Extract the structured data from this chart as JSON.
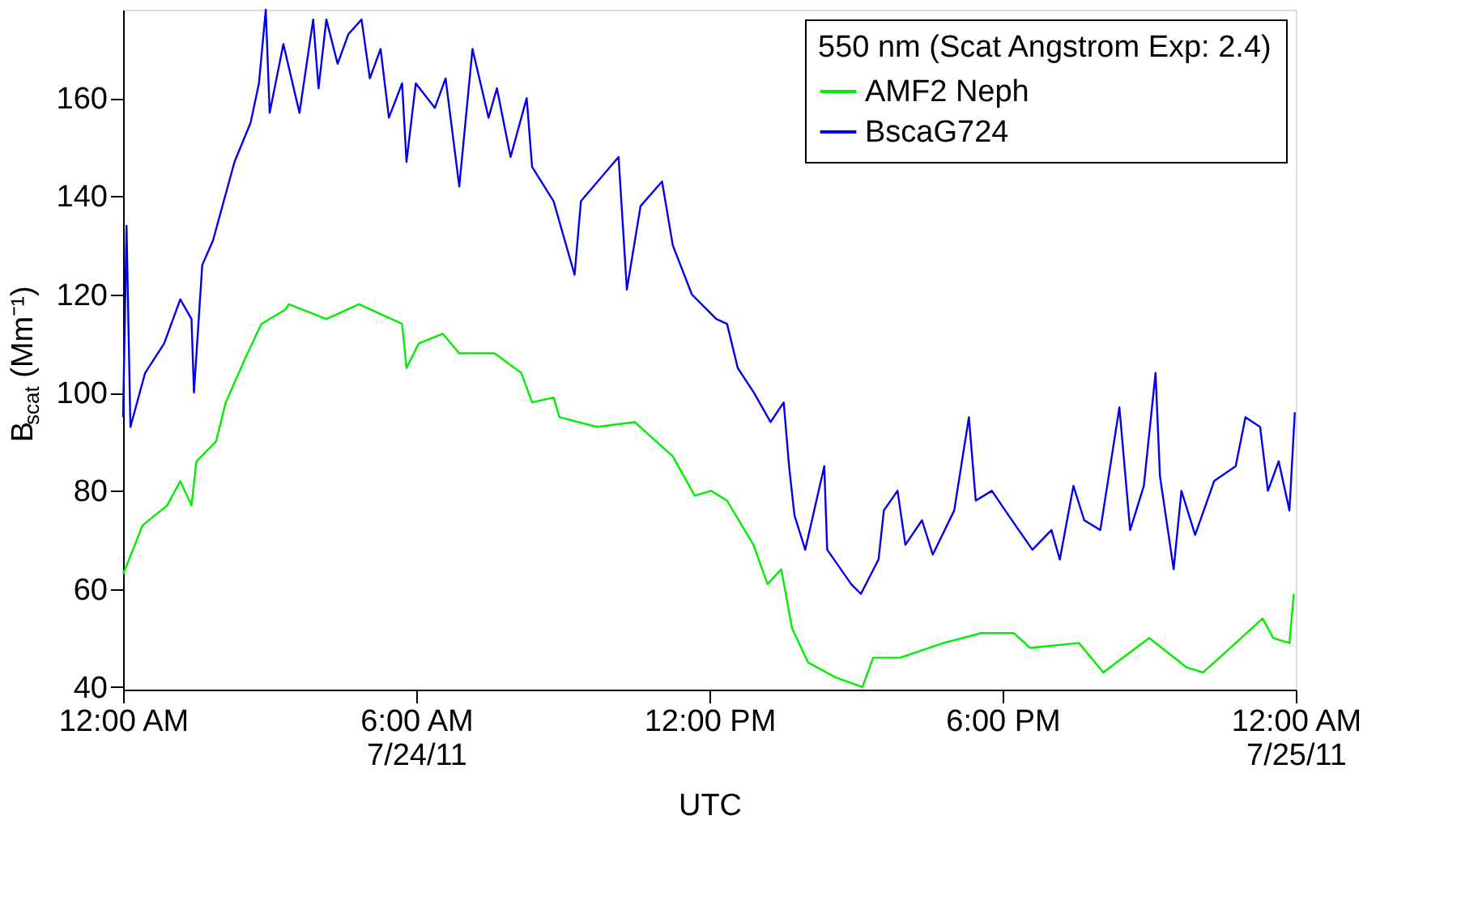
{
  "chart_data": {
    "type": "line",
    "xlabel": "UTC",
    "ylabel": "B$_{scat}$ (Mm⁻¹)",
    "legend_title": "550 nm (Scat Angstrom Exp: 2.4)",
    "xlim": [
      0,
      24
    ],
    "ylim": [
      39.5,
      178
    ],
    "xticks": [
      {
        "value": 0,
        "label": "12:00 AM"
      },
      {
        "value": 6,
        "label": "6:00 AM\n7/24/11"
      },
      {
        "value": 12,
        "label": "12:00 PM"
      },
      {
        "value": 18,
        "label": "6:00 PM"
      },
      {
        "value": 24,
        "label": "12:00 AM\n7/25/11"
      }
    ],
    "yticks": [
      40,
      60,
      80,
      100,
      120,
      140,
      160
    ],
    "grid": false,
    "legend": "top right",
    "series": [
      {
        "name": "AMF2 Neph",
        "color": "#00ee00",
        "x": [
          0.0,
          0.4,
          0.9,
          1.17,
          1.4,
          1.5,
          1.9,
          2.1,
          2.5,
          2.83,
          3.33,
          3.39,
          4.16,
          4.83,
          5.49,
          5.71,
          5.8,
          6.05,
          6.54,
          6.88,
          7.6,
          8.15,
          8.37,
          8.81,
          8.93,
          9.7,
          10.47,
          11.25,
          11.7,
          12.03,
          12.36,
          12.9,
          13.19,
          13.47,
          13.69,
          14.02,
          14.58,
          15.13,
          15.35,
          15.9,
          16.79,
          17.56,
          18.23,
          18.56,
          19.56,
          20.06,
          21.0,
          21.77,
          22.1,
          22.77,
          23.32,
          23.54,
          23.87,
          23.96
        ],
        "values": [
          63,
          73,
          77,
          82,
          77,
          86,
          90,
          98,
          107,
          114,
          117,
          118,
          115,
          118,
          115,
          114,
          105,
          110,
          112,
          108,
          108,
          104,
          98,
          99,
          95,
          93,
          94,
          87,
          79,
          80,
          78,
          69,
          61,
          64,
          52,
          45,
          42,
          40,
          46,
          46,
          49,
          51,
          51,
          48,
          49,
          43,
          50,
          44,
          43,
          49,
          54,
          50,
          49,
          59
        ]
      },
      {
        "name": "BscaG724",
        "color": "#0000ee",
        "x": [
          0.0,
          0.07,
          0.15,
          0.45,
          0.84,
          1.17,
          1.4,
          1.45,
          1.62,
          1.84,
          2.06,
          2.28,
          2.61,
          2.78,
          2.92,
          3.0,
          3.28,
          3.61,
          3.89,
          4.0,
          4.16,
          4.39,
          4.61,
          4.88,
          5.05,
          5.27,
          5.44,
          5.71,
          5.8,
          5.99,
          6.38,
          6.6,
          6.88,
          7.15,
          7.48,
          7.65,
          7.93,
          8.26,
          8.37,
          8.81,
          9.24,
          9.37,
          10.14,
          10.31,
          10.59,
          11.03,
          11.25,
          11.64,
          12.14,
          12.36,
          12.58,
          12.91,
          13.25,
          13.52,
          13.63,
          13.74,
          13.96,
          14.35,
          14.41,
          14.9,
          15.1,
          15.46,
          15.57,
          15.85,
          16.01,
          16.35,
          16.57,
          17.01,
          17.31,
          17.45,
          17.78,
          18.12,
          18.61,
          19.0,
          19.17,
          19.45,
          19.67,
          20.0,
          20.39,
          20.61,
          20.89,
          21.13,
          21.22,
          21.5,
          21.66,
          21.94,
          22.33,
          22.77,
          22.97,
          23.27,
          23.43,
          23.65,
          23.87,
          23.98
        ],
        "values": [
          95,
          134,
          93,
          104,
          110,
          119,
          115,
          100,
          126,
          131,
          139,
          147,
          155,
          163,
          178,
          157,
          171,
          157,
          176,
          162,
          176,
          167,
          173,
          176,
          164,
          170,
          156,
          163,
          147,
          163,
          158,
          164,
          142,
          170,
          156,
          162,
          148,
          160,
          146,
          139,
          124,
          139,
          148,
          121,
          138,
          143,
          130,
          120,
          115,
          114,
          105,
          100,
          94,
          98,
          85,
          75,
          68,
          85,
          68,
          61,
          59,
          66,
          76,
          80,
          69,
          74,
          67,
          76,
          95,
          78,
          80,
          75,
          68,
          72,
          66,
          81,
          74,
          72,
          97,
          72,
          81,
          104,
          83,
          64,
          80,
          71,
          82,
          85,
          95,
          93,
          80,
          86,
          76,
          96
        ]
      }
    ]
  }
}
